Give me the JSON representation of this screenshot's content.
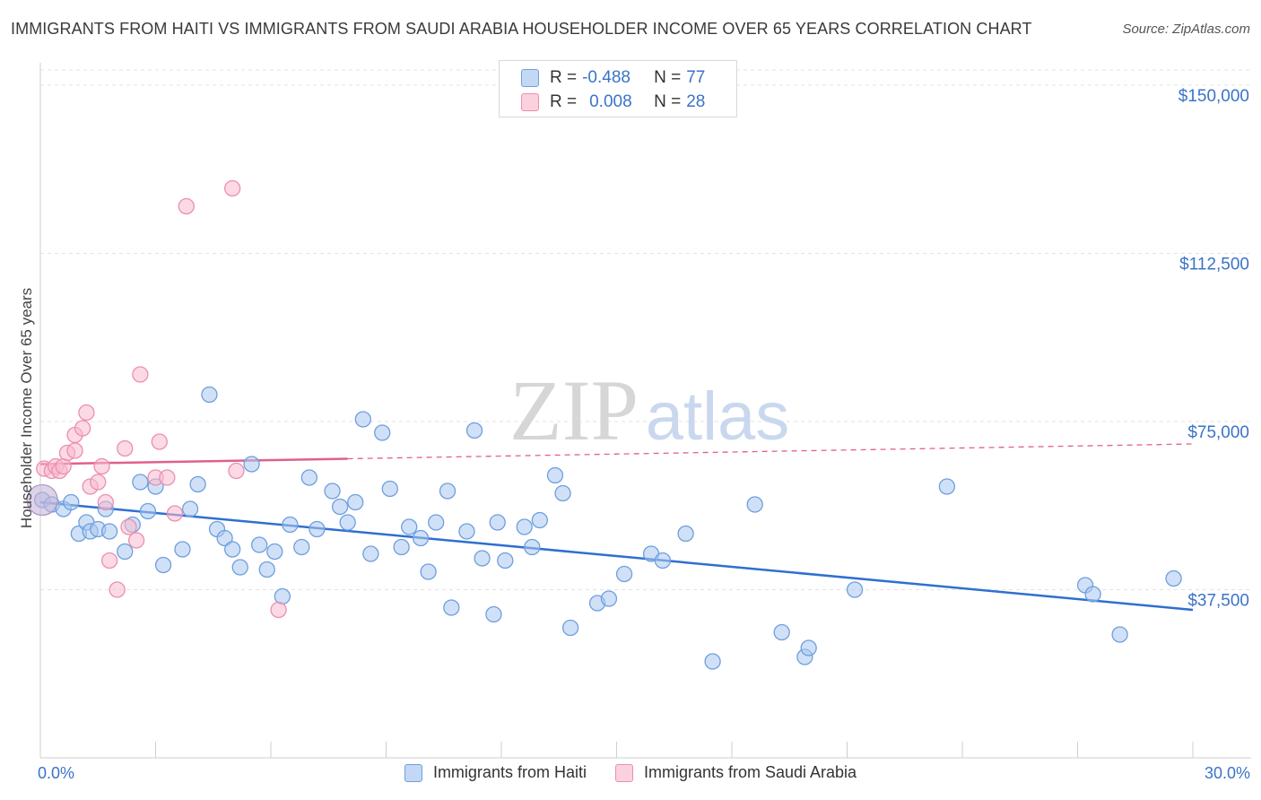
{
  "header": {
    "title": "IMMIGRANTS FROM HAITI VS IMMIGRANTS FROM SAUDI ARABIA HOUSEHOLDER INCOME OVER 65 YEARS CORRELATION CHART",
    "source": "Source: ZipAtlas.com"
  },
  "watermark": {
    "zip": "ZIP",
    "atlas": "atlas"
  },
  "legend_top": {
    "rows": [
      {
        "r_label": "R =",
        "r_value": "-0.488",
        "n_label": "N =",
        "n_value": "77"
      },
      {
        "r_label": "R =",
        "r_value": "0.008",
        "n_label": "N =",
        "n_value": "28"
      }
    ]
  },
  "legend_bottom": {
    "haiti": "Immigrants from Haiti",
    "saudi": "Immigrants from Saudi Arabia"
  },
  "colors": {
    "haiti_fill": "#a9c8f0",
    "haiti_stroke": "#6f9fde",
    "haiti_line": "#2f6fd0",
    "saudi_fill": "#f8bccf",
    "saudi_stroke": "#ec8fae",
    "saudi_line": "#e0608a",
    "accent_text": "#3a73c8",
    "grid": "#e3e3e3"
  },
  "chart_data": {
    "type": "scatter",
    "title": "IMMIGRANTS FROM HAITI VS IMMIGRANTS FROM SAUDI ARABIA HOUSEHOLDER INCOME OVER 65 YEARS CORRELATION CHART",
    "xlabel": "",
    "ylabel": "Householder Income Over 65 years",
    "xlim": [
      0,
      30
    ],
    "ylim": [
      0,
      155000
    ],
    "x_tick_labels": [
      "0.0%",
      "30.0%"
    ],
    "y_ticks": [
      37500,
      75000,
      112500,
      150000
    ],
    "y_tick_labels": [
      "$37,500",
      "$75,000",
      "$112,500",
      "$150,000"
    ],
    "grid": true,
    "legend_position": "top-center",
    "series": [
      {
        "name": "Immigrants from Haiti",
        "r": -0.488,
        "n": 77,
        "trend": {
          "x": [
            0,
            30
          ],
          "y": [
            57000,
            33000
          ],
          "dashed_from": null
        },
        "points": [
          [
            0.05,
            57500
          ],
          [
            0.3,
            56500
          ],
          [
            0.6,
            55500
          ],
          [
            0.8,
            57000
          ],
          [
            1.0,
            50000
          ],
          [
            1.2,
            52500
          ],
          [
            1.3,
            50500
          ],
          [
            1.5,
            51000
          ],
          [
            1.7,
            55500
          ],
          [
            1.8,
            50500
          ],
          [
            2.2,
            46000
          ],
          [
            2.4,
            52000
          ],
          [
            2.6,
            61500
          ],
          [
            2.8,
            55000
          ],
          [
            3.0,
            60500
          ],
          [
            3.2,
            43000
          ],
          [
            3.7,
            46500
          ],
          [
            3.9,
            55500
          ],
          [
            4.1,
            61000
          ],
          [
            4.4,
            81000
          ],
          [
            4.6,
            51000
          ],
          [
            4.8,
            49000
          ],
          [
            5.0,
            46500
          ],
          [
            5.2,
            42500
          ],
          [
            5.5,
            65500
          ],
          [
            5.7,
            47500
          ],
          [
            5.9,
            42000
          ],
          [
            6.1,
            46000
          ],
          [
            6.3,
            36000
          ],
          [
            6.5,
            52000
          ],
          [
            6.8,
            47000
          ],
          [
            7.0,
            62500
          ],
          [
            7.2,
            51000
          ],
          [
            7.6,
            59500
          ],
          [
            7.8,
            56000
          ],
          [
            8.0,
            52500
          ],
          [
            8.2,
            57000
          ],
          [
            8.4,
            75500
          ],
          [
            8.6,
            45500
          ],
          [
            8.9,
            72500
          ],
          [
            9.1,
            60000
          ],
          [
            9.4,
            47000
          ],
          [
            9.6,
            51500
          ],
          [
            9.9,
            49000
          ],
          [
            10.1,
            41500
          ],
          [
            10.3,
            52500
          ],
          [
            10.6,
            59500
          ],
          [
            10.7,
            33500
          ],
          [
            11.1,
            50500
          ],
          [
            11.3,
            73000
          ],
          [
            11.5,
            44500
          ],
          [
            11.8,
            32000
          ],
          [
            11.9,
            52500
          ],
          [
            12.1,
            44000
          ],
          [
            12.6,
            51500
          ],
          [
            12.8,
            47000
          ],
          [
            13.0,
            53000
          ],
          [
            13.4,
            63000
          ],
          [
            13.6,
            59000
          ],
          [
            13.8,
            29000
          ],
          [
            14.5,
            34500
          ],
          [
            14.8,
            35500
          ],
          [
            15.2,
            41000
          ],
          [
            15.9,
            45500
          ],
          [
            16.2,
            44000
          ],
          [
            16.8,
            50000
          ],
          [
            17.5,
            21500
          ],
          [
            18.6,
            56500
          ],
          [
            19.3,
            28000
          ],
          [
            19.9,
            22500
          ],
          [
            20.0,
            24500
          ],
          [
            21.2,
            37500
          ],
          [
            23.6,
            60500
          ],
          [
            27.2,
            38500
          ],
          [
            27.4,
            36500
          ],
          [
            28.1,
            27500
          ],
          [
            29.5,
            40000
          ]
        ]
      },
      {
        "name": "Immigrants from Saudi Arabia",
        "r": 0.008,
        "n": 28,
        "trend": {
          "x": [
            0,
            30
          ],
          "y": [
            65500,
            70000
          ],
          "dashed_from": 8.0
        },
        "points": [
          [
            0.1,
            64500
          ],
          [
            0.3,
            64000
          ],
          [
            0.4,
            65000
          ],
          [
            0.5,
            64000
          ],
          [
            0.6,
            65000
          ],
          [
            0.7,
            68000
          ],
          [
            0.9,
            68500
          ],
          [
            0.9,
            72000
          ],
          [
            1.1,
            73500
          ],
          [
            1.2,
            77000
          ],
          [
            1.3,
            60500
          ],
          [
            1.5,
            61500
          ],
          [
            1.6,
            65000
          ],
          [
            1.7,
            57000
          ],
          [
            1.8,
            44000
          ],
          [
            2.0,
            37500
          ],
          [
            2.2,
            69000
          ],
          [
            2.3,
            51500
          ],
          [
            2.5,
            48500
          ],
          [
            2.6,
            85500
          ],
          [
            3.0,
            62500
          ],
          [
            3.1,
            70500
          ],
          [
            3.3,
            62500
          ],
          [
            3.5,
            54500
          ],
          [
            3.8,
            123000
          ],
          [
            5.0,
            127000
          ],
          [
            5.1,
            64000
          ],
          [
            6.2,
            33000
          ]
        ]
      }
    ]
  }
}
